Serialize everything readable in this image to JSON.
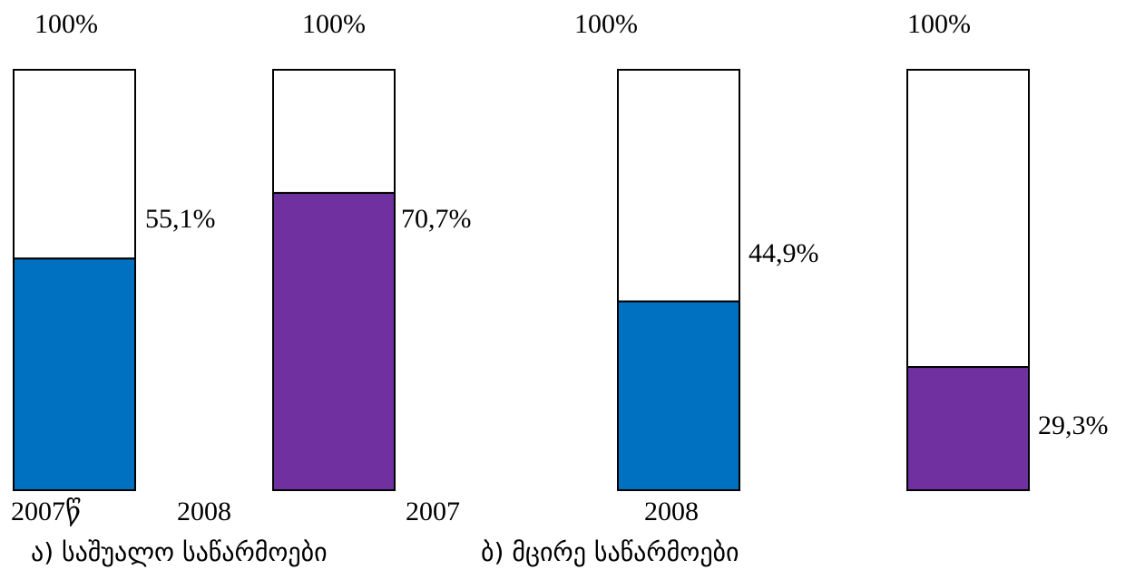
{
  "chart_data": {
    "type": "bar",
    "subtype": "100% stacked columns",
    "colors": {
      "blue": "#0070C0",
      "purple": "#7030A0",
      "remainder": "#FFFFFF",
      "outline": "#000000"
    },
    "ylim": [
      0,
      100
    ],
    "bars": [
      {
        "top_label": "100%",
        "value": 55.1,
        "value_label": "55,1%",
        "color": "#0070C0",
        "year_label": "2007წ"
      },
      {
        "top_label": "100%",
        "value": 70.7,
        "value_label": "70,7%",
        "color": "#7030A0",
        "year_label": "2008"
      },
      {
        "top_label": "100%",
        "value": 44.9,
        "value_label": "44,9%",
        "color": "#0070C0",
        "year_label": "2007"
      },
      {
        "top_label": "100%",
        "value": 29.3,
        "value_label": "29,3%",
        "color": "#7030A0",
        "year_label": "2008"
      }
    ],
    "groups": [
      {
        "caption": "ა) საშუალო საწარმოები"
      },
      {
        "caption": "ბ) მცირე საწარმოები"
      }
    ]
  }
}
